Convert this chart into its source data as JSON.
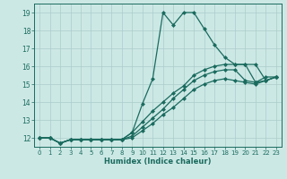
{
  "xlabel": "Humidex (Indice chaleur)",
  "xlim": [
    -0.5,
    23.5
  ],
  "ylim": [
    11.5,
    19.5
  ],
  "xticks": [
    0,
    1,
    2,
    3,
    4,
    5,
    6,
    7,
    8,
    9,
    10,
    11,
    12,
    13,
    14,
    15,
    16,
    17,
    18,
    19,
    20,
    21,
    22,
    23
  ],
  "yticks": [
    12,
    13,
    14,
    15,
    16,
    17,
    18,
    19
  ],
  "background_color": "#cce8e5",
  "grid_color": "#aaccca",
  "line_color": "#1a6b5e",
  "lines": [
    {
      "x": [
        0,
        1,
        2,
        3,
        4,
        5,
        6,
        7,
        8,
        9,
        10,
        11,
        12,
        13,
        14,
        15,
        16,
        17,
        18,
        19,
        20,
        21,
        22,
        23
      ],
      "y": [
        12.0,
        12.0,
        11.7,
        11.9,
        11.9,
        11.9,
        11.9,
        11.9,
        11.9,
        12.3,
        13.9,
        15.3,
        19.0,
        18.3,
        19.0,
        19.0,
        18.1,
        17.2,
        16.5,
        16.1,
        16.1,
        15.1,
        15.4,
        15.4
      ],
      "marker": "D",
      "markersize": 2,
      "linewidth": 0.9,
      "linestyle": "-"
    },
    {
      "x": [
        0,
        1,
        2,
        3,
        4,
        5,
        6,
        7,
        8,
        9,
        10,
        11,
        12,
        13,
        14,
        15,
        16,
        17,
        18,
        19,
        20,
        21,
        22,
        23
      ],
      "y": [
        12.0,
        12.0,
        11.7,
        11.9,
        11.9,
        11.9,
        11.9,
        11.9,
        11.9,
        12.3,
        12.9,
        13.5,
        14.0,
        14.5,
        14.9,
        15.5,
        15.8,
        16.0,
        16.1,
        16.1,
        16.1,
        16.1,
        15.2,
        15.4
      ],
      "marker": "D",
      "markersize": 2,
      "linewidth": 0.9,
      "linestyle": "-"
    },
    {
      "x": [
        0,
        1,
        2,
        3,
        4,
        5,
        6,
        7,
        8,
        9,
        10,
        11,
        12,
        13,
        14,
        15,
        16,
        17,
        18,
        19,
        20,
        21,
        22,
        23
      ],
      "y": [
        12.0,
        12.0,
        11.7,
        11.9,
        11.9,
        11.9,
        11.9,
        11.9,
        11.9,
        12.1,
        12.6,
        13.1,
        13.6,
        14.2,
        14.7,
        15.2,
        15.5,
        15.7,
        15.8,
        15.8,
        15.2,
        15.1,
        15.2,
        15.4
      ],
      "marker": "D",
      "markersize": 2,
      "linewidth": 0.9,
      "linestyle": "-"
    },
    {
      "x": [
        0,
        1,
        2,
        3,
        4,
        5,
        6,
        7,
        8,
        9,
        10,
        11,
        12,
        13,
        14,
        15,
        16,
        17,
        18,
        19,
        20,
        21,
        22,
        23
      ],
      "y": [
        12.0,
        12.0,
        11.7,
        11.9,
        11.9,
        11.9,
        11.9,
        11.9,
        11.9,
        12.0,
        12.4,
        12.8,
        13.3,
        13.7,
        14.2,
        14.7,
        15.0,
        15.2,
        15.3,
        15.2,
        15.1,
        15.0,
        15.2,
        15.4
      ],
      "marker": "D",
      "markersize": 2,
      "linewidth": 0.9,
      "linestyle": "-"
    }
  ]
}
